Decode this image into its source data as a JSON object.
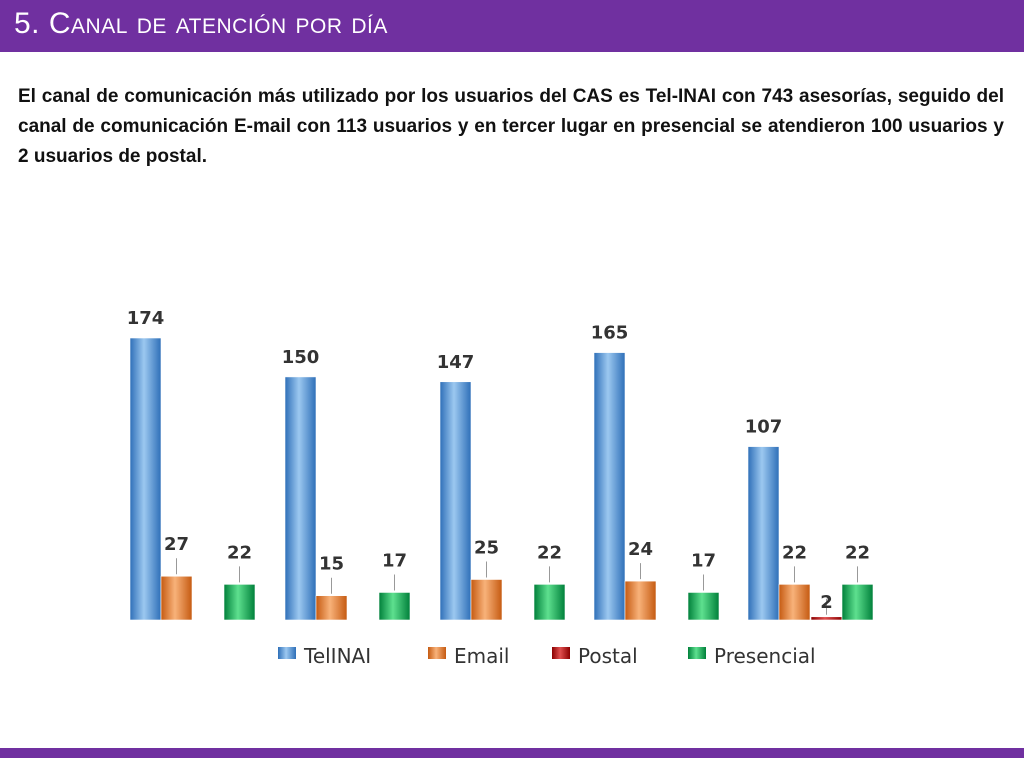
{
  "header": {
    "title": "5. Canal de atención por día"
  },
  "body": {
    "paragraph": "El canal de comunicación más utilizado por los usuarios del CAS es Tel-INAI con 743 asesorías, seguido del canal de comunicación E-mail con 113 usuarios y en tercer lugar en presencial se atendieron 100 usuarios y 2 usuarios de postal."
  },
  "chart_data": {
    "type": "bar",
    "title": "",
    "xlabel": "",
    "ylabel": "",
    "categories": [
      "",
      "",
      "",
      "",
      ""
    ],
    "series": [
      {
        "name": "TelINAI",
        "color": "#5b9bd5",
        "values": [
          174,
          150,
          147,
          165,
          107
        ]
      },
      {
        "name": "Email",
        "color": "#ed7d31",
        "values": [
          27,
          15,
          25,
          24,
          22
        ]
      },
      {
        "name": "Postal",
        "color": "#c00000",
        "values": [
          null,
          null,
          null,
          null,
          2
        ]
      },
      {
        "name": "Presencial",
        "color": "#00b050",
        "values": [
          22,
          17,
          22,
          17,
          22
        ]
      }
    ],
    "legend_position": "bottom",
    "grid": false,
    "ylim": [
      0,
      174
    ]
  }
}
